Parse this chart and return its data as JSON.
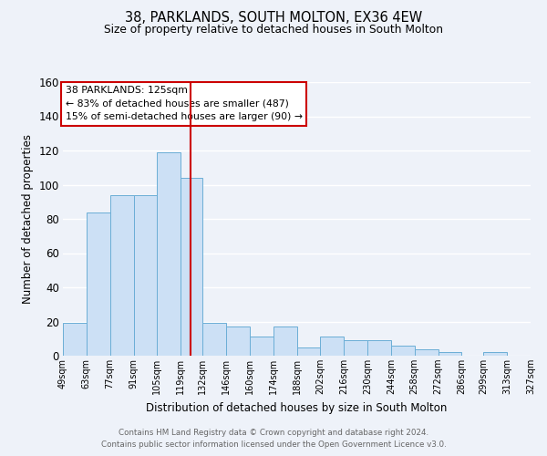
{
  "title": "38, PARKLANDS, SOUTH MOLTON, EX36 4EW",
  "subtitle": "Size of property relative to detached houses in South Molton",
  "xlabel": "Distribution of detached houses by size in South Molton",
  "ylabel": "Number of detached properties",
  "bin_edges": [
    49,
    63,
    77,
    91,
    105,
    119,
    132,
    146,
    160,
    174,
    188,
    202,
    216,
    230,
    244,
    258,
    272,
    286,
    299,
    313,
    327
  ],
  "bin_heights": [
    19,
    84,
    94,
    94,
    119,
    104,
    19,
    17,
    11,
    17,
    5,
    11,
    9,
    9,
    6,
    4,
    2,
    0,
    2,
    0
  ],
  "bar_facecolor": "#cce0f5",
  "bar_edgecolor": "#6baed6",
  "vline_x": 125,
  "vline_color": "#cc0000",
  "annotation_box_text": "38 PARKLANDS: 125sqm\n← 83% of detached houses are smaller (487)\n15% of semi-detached houses are larger (90) →",
  "annotation_box_facecolor": "white",
  "annotation_box_edgecolor": "#cc0000",
  "ylim": [
    0,
    160
  ],
  "yticks": [
    0,
    20,
    40,
    60,
    80,
    100,
    120,
    140,
    160
  ],
  "bg_color": "#eef2f9",
  "grid_color": "white",
  "footer_line1": "Contains HM Land Registry data © Crown copyright and database right 2024.",
  "footer_line2": "Contains public sector information licensed under the Open Government Licence v3.0.",
  "tick_labels": [
    "49sqm",
    "63sqm",
    "77sqm",
    "91sqm",
    "105sqm",
    "119sqm",
    "132sqm",
    "146sqm",
    "160sqm",
    "174sqm",
    "188sqm",
    "202sqm",
    "216sqm",
    "230sqm",
    "244sqm",
    "258sqm",
    "272sqm",
    "286sqm",
    "299sqm",
    "313sqm",
    "327sqm"
  ]
}
